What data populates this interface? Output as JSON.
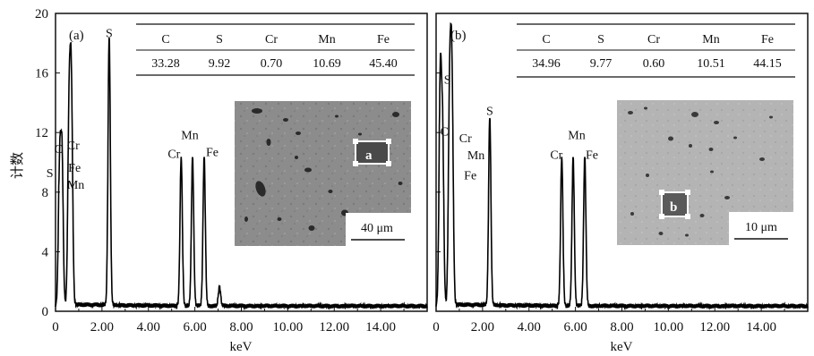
{
  "chart_data": [
    {
      "type": "line",
      "panel_label": "(a)",
      "xlabel": "keV",
      "ylabel": "计数",
      "xlim": [
        0,
        16
      ],
      "ylim": [
        0,
        20
      ],
      "xticks": [
        "0",
        "2.00",
        "4.00",
        "6.00",
        "8.00",
        "10.00",
        "12.00",
        "14.00"
      ],
      "yticks": [
        "0",
        "4",
        "8",
        "12",
        "16",
        "20"
      ],
      "peaks": [
        {
          "label": "C",
          "x": 0.28,
          "y": 9.8
        },
        {
          "label": "S",
          "x": 0.18,
          "y": 9.5
        },
        {
          "label": "Cr",
          "x": 0.57,
          "y": 9.9
        },
        {
          "label": "Fe",
          "x": 0.7,
          "y": 9.6
        },
        {
          "label": "Mn",
          "x": 0.64,
          "y": 9.3
        },
        {
          "label": "S",
          "x": 2.31,
          "y": 18.1
        },
        {
          "label": "Cr",
          "x": 5.41,
          "y": 10.0
        },
        {
          "label": "Mn",
          "x": 5.9,
          "y": 10.0
        },
        {
          "label": "Fe",
          "x": 6.4,
          "y": 10.0
        },
        {
          "label": "",
          "x": 7.06,
          "y": 1.3
        }
      ],
      "table": {
        "headers": [
          "C",
          "S",
          "Cr",
          "Mn",
          "Fe"
        ],
        "values": [
          "33.28",
          "9.92",
          "0.70",
          "10.69",
          "45.40"
        ]
      },
      "inset": {
        "scale_bar": "40 μm",
        "marker": "a"
      }
    },
    {
      "type": "line",
      "panel_label": "(b)",
      "xlabel": "keV",
      "xlim": [
        0,
        16
      ],
      "ylim": [
        0,
        20
      ],
      "xticks": [
        "0",
        "2.00",
        "4.00",
        "6.00",
        "8.00",
        "10.00",
        "12.00",
        "14.00"
      ],
      "peaks": [
        {
          "label": "S",
          "x": 0.18,
          "y": 15.0
        },
        {
          "label": "C",
          "x": 0.28,
          "y": 11.2
        },
        {
          "label": "Cr",
          "x": 0.57,
          "y": 11.0
        },
        {
          "label": "Mn",
          "x": 0.64,
          "y": 10.2
        },
        {
          "label": "Fe",
          "x": 0.7,
          "y": 9.7
        },
        {
          "label": "S",
          "x": 2.31,
          "y": 12.7
        },
        {
          "label": "Cr",
          "x": 5.41,
          "y": 10.0
        },
        {
          "label": "Mn",
          "x": 5.9,
          "y": 10.0
        },
        {
          "label": "Fe",
          "x": 6.4,
          "y": 10.0
        }
      ],
      "table": {
        "headers": [
          "C",
          "S",
          "Cr",
          "Mn",
          "Fe"
        ],
        "values": [
          "34.96",
          "9.77",
          "0.60",
          "10.51",
          "44.15"
        ]
      },
      "inset": {
        "scale_bar": "10 μm",
        "marker": "b"
      }
    }
  ]
}
